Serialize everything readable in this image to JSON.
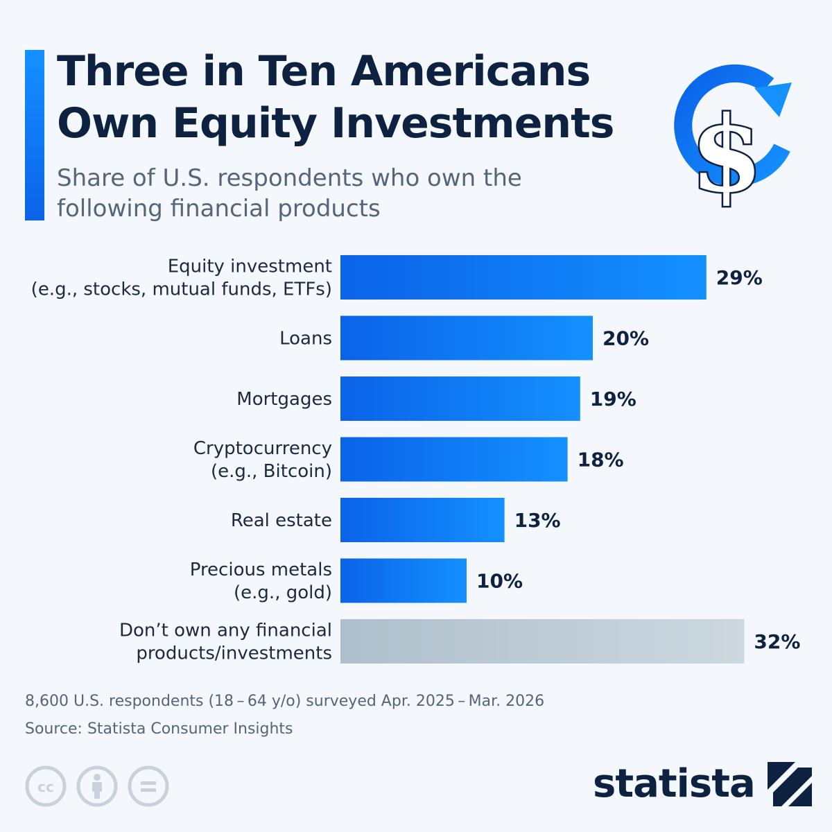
{
  "header": {
    "title": "Three in Ten Americans Own Equity Investments",
    "subtitle": "Share of U.S. respondents who own the following financial products",
    "icon": "dollar-refresh-icon"
  },
  "colors": {
    "bar_gradient_start": "#0b63e8",
    "bar_gradient_end": "#1490ff",
    "bar_muted_start": "#aebfcb",
    "bar_muted_end": "#cdd8e0",
    "title": "#0d2140",
    "accent": "#1490ff"
  },
  "chart_data": {
    "type": "bar",
    "orientation": "horizontal",
    "title": "Three in Ten Americans Own Equity Investments",
    "subtitle": "Share of U.S. respondents who own the following financial products",
    "xlabel": "",
    "ylabel": "",
    "xlim": [
      0,
      32
    ],
    "grid": false,
    "categories": [
      [
        "Equity investment",
        "(e.g., stocks, mutual funds, ETFs)"
      ],
      [
        "Loans"
      ],
      [
        "Mortgages"
      ],
      [
        "Cryptocurrency",
        "(e.g., Bitcoin)"
      ],
      [
        "Real estate"
      ],
      [
        "Precious metals",
        "(e.g., gold)"
      ],
      [
        "Don’t own any financial",
        "products/investments"
      ]
    ],
    "values": [
      29,
      20,
      19,
      18,
      13,
      10,
      32
    ],
    "value_labels": [
      "29%",
      "20%",
      "19%",
      "18%",
      "13%",
      "10%",
      "32%"
    ],
    "highlight": [
      true,
      true,
      true,
      true,
      true,
      true,
      false
    ]
  },
  "footer": {
    "note": "8,600 U.S. respondents (18 – 64 y/o) surveyed Apr. 2025 – Mar. 2026",
    "source": "Source: Statista Consumer Insights",
    "license_icons": [
      "cc-icon",
      "attribution-icon",
      "no-derivatives-icon"
    ],
    "brand": "statista"
  }
}
